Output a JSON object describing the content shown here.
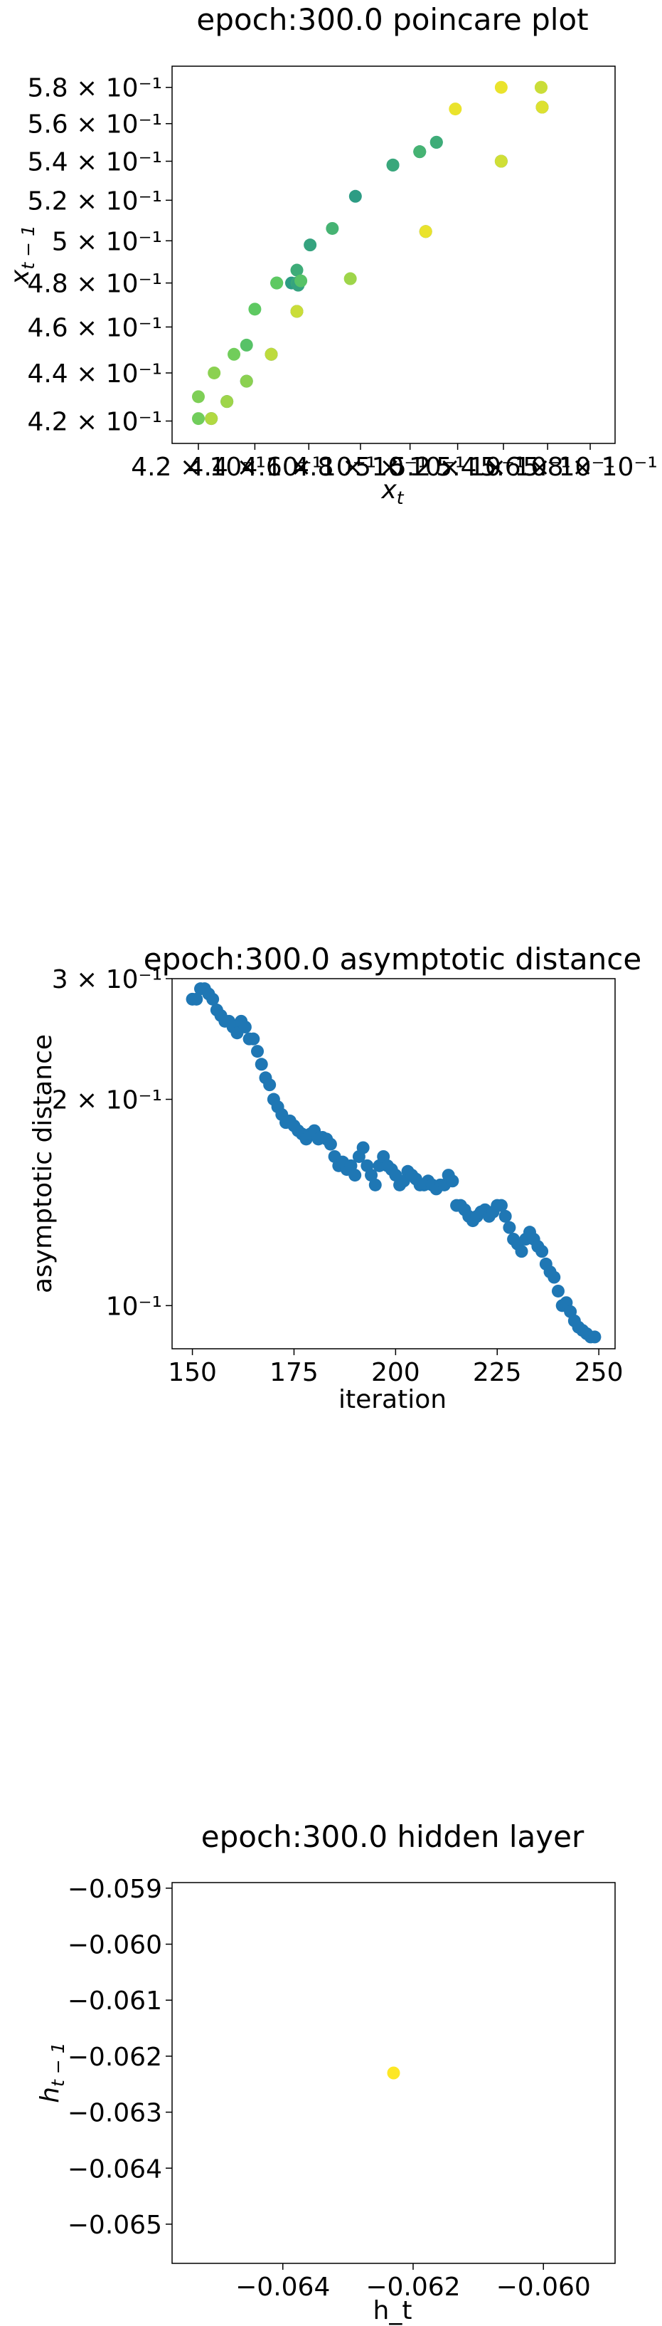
{
  "chart_data": [
    {
      "type": "scatter",
      "title": "epoch:300.0 poincare plot",
      "xlabel": "x_t",
      "ylabel": "x_{t-1}",
      "xscale": "log",
      "yscale": "log",
      "xlim": [
        0.411,
        0.592
      ],
      "ylim": [
        0.411,
        0.592
      ],
      "xticks": [
        0.42,
        0.44,
        0.46,
        0.48,
        0.5,
        0.52,
        0.54,
        0.56,
        0.58
      ],
      "xtick_labels": [
        "4.2 × 10⁻¹",
        "4.4 × 10⁻¹",
        "4.6 × 10⁻¹",
        "4.8 × 10⁻¹",
        "5 × 10⁻¹",
        "5.2 × 10⁻¹",
        "5.4 × 10⁻¹",
        "5.6 × 10⁻¹",
        "5.8 × 10⁻¹"
      ],
      "yticks": [
        0.42,
        0.44,
        0.46,
        0.48,
        0.5,
        0.52,
        0.54,
        0.56,
        0.58
      ],
      "ytick_labels": [
        "4.2 × 10⁻¹",
        "4.4 × 10⁻¹",
        "4.6 × 10⁻¹",
        "4.8 × 10⁻¹",
        "5 × 10⁻¹",
        "5.2 × 10⁻¹",
        "5.4 × 10⁻¹",
        "5.6 × 10⁻¹",
        "5.8 × 10⁻¹"
      ],
      "colormap": "viridis",
      "grid": false,
      "points": [
        {
          "x": 0.42,
          "y": 0.43,
          "c": 0.8
        },
        {
          "x": 0.42,
          "y": 0.421,
          "c": 0.78
        },
        {
          "x": 0.4245,
          "y": 0.421,
          "c": 0.4
        },
        {
          "x": 0.4245,
          "y": 0.421,
          "c": 0.88
        },
        {
          "x": 0.4255,
          "y": 0.44,
          "c": 0.82
        },
        {
          "x": 0.43,
          "y": 0.428,
          "c": 0.35
        },
        {
          "x": 0.43,
          "y": 0.428,
          "c": 0.85
        },
        {
          "x": 0.4325,
          "y": 0.448,
          "c": 0.78
        },
        {
          "x": 0.437,
          "y": 0.4365,
          "c": 0.3
        },
        {
          "x": 0.437,
          "y": 0.4365,
          "c": 0.82
        },
        {
          "x": 0.437,
          "y": 0.452,
          "c": 0.72
        },
        {
          "x": 0.44,
          "y": 0.468,
          "c": 0.75
        },
        {
          "x": 0.446,
          "y": 0.448,
          "c": 0.3
        },
        {
          "x": 0.446,
          "y": 0.448,
          "c": 0.9
        },
        {
          "x": 0.448,
          "y": 0.48,
          "c": 0.55
        },
        {
          "x": 0.448,
          "y": 0.48,
          "c": 0.75
        },
        {
          "x": 0.4535,
          "y": 0.48,
          "c": 0.55
        },
        {
          "x": 0.4555,
          "y": 0.48,
          "c": 0.6
        },
        {
          "x": 0.4555,
          "y": 0.486,
          "c": 0.62
        },
        {
          "x": 0.4555,
          "y": 0.467,
          "c": 0.35
        },
        {
          "x": 0.4555,
          "y": 0.467,
          "c": 0.92
        },
        {
          "x": 0.456,
          "y": 0.479,
          "c": 0.58
        },
        {
          "x": 0.457,
          "y": 0.481,
          "c": 0.72
        },
        {
          "x": 0.4605,
          "y": 0.498,
          "c": 0.58
        },
        {
          "x": 0.469,
          "y": 0.506,
          "c": 0.65
        },
        {
          "x": 0.476,
          "y": 0.482,
          "c": 0.85
        },
        {
          "x": 0.478,
          "y": 0.522,
          "c": 0.55
        },
        {
          "x": 0.493,
          "y": 0.538,
          "c": 0.5
        },
        {
          "x": 0.493,
          "y": 0.538,
          "c": 0.6
        },
        {
          "x": 0.504,
          "y": 0.545,
          "c": 0.45
        },
        {
          "x": 0.504,
          "y": 0.545,
          "c": 0.65
        },
        {
          "x": 0.5065,
          "y": 0.5045,
          "c": 0.4
        },
        {
          "x": 0.5065,
          "y": 0.5045,
          "c": 0.97
        },
        {
          "x": 0.511,
          "y": 0.55,
          "c": 0.5
        },
        {
          "x": 0.511,
          "y": 0.55,
          "c": 0.62
        },
        {
          "x": 0.519,
          "y": 0.568,
          "c": 0.97
        },
        {
          "x": 0.539,
          "y": 0.58,
          "c": 0.97
        },
        {
          "x": 0.539,
          "y": 0.54,
          "c": 0.4
        },
        {
          "x": 0.539,
          "y": 0.54,
          "c": 0.93
        },
        {
          "x": 0.557,
          "y": 0.58,
          "c": 0.97
        },
        {
          "x": 0.557,
          "y": 0.58,
          "c": 0.92
        },
        {
          "x": 0.5575,
          "y": 0.569,
          "c": 0.4
        },
        {
          "x": 0.5575,
          "y": 0.569,
          "c": 0.95
        }
      ]
    },
    {
      "type": "scatter",
      "title": "epoch:300.0 asymptotic distance",
      "xlabel": "iteration",
      "ylabel": "asymptotic distance",
      "yscale": "log",
      "xlim": [
        145,
        254
      ],
      "ylim": [
        0.0865,
        0.3
      ],
      "xticks": [
        150,
        175,
        200,
        225,
        250
      ],
      "xtick_labels": [
        "150",
        "175",
        "200",
        "225",
        "250"
      ],
      "yticks": [
        0.1,
        0.2,
        0.3
      ],
      "ytick_labels": [
        "10⁻¹",
        "2 × 10⁻¹",
        "3 × 10⁻¹"
      ],
      "color": "#1f77b4",
      "grid": false,
      "x": [
        150,
        151,
        152,
        153,
        154,
        155,
        156,
        157,
        158,
        159,
        160,
        161,
        162,
        163,
        164,
        165,
        166,
        167,
        168,
        169,
        170,
        171,
        172,
        173,
        174,
        175,
        176,
        177,
        178,
        179,
        180,
        181,
        182,
        183,
        184,
        185,
        186,
        187,
        188,
        189,
        190,
        191,
        192,
        193,
        194,
        195,
        196,
        197,
        198,
        199,
        200,
        201,
        202,
        203,
        204,
        205,
        206,
        207,
        208,
        209,
        210,
        211,
        212,
        213,
        214,
        215,
        216,
        217,
        218,
        219,
        220,
        221,
        222,
        223,
        224,
        225,
        226,
        227,
        228,
        229,
        230,
        231,
        232,
        233,
        234,
        235,
        236,
        237,
        238,
        239,
        240,
        241,
        242,
        243,
        244,
        245,
        246,
        247,
        248,
        249
      ],
      "y": [
        0.28,
        0.28,
        0.29,
        0.29,
        0.285,
        0.28,
        0.27,
        0.265,
        0.26,
        0.26,
        0.255,
        0.25,
        0.26,
        0.255,
        0.245,
        0.245,
        0.235,
        0.225,
        0.215,
        0.21,
        0.2,
        0.195,
        0.19,
        0.185,
        0.186,
        0.183,
        0.18,
        0.178,
        0.175,
        0.178,
        0.18,
        0.175,
        0.176,
        0.175,
        0.172,
        0.165,
        0.16,
        0.162,
        0.158,
        0.16,
        0.155,
        0.165,
        0.17,
        0.16,
        0.155,
        0.15,
        0.16,
        0.165,
        0.16,
        0.158,
        0.155,
        0.15,
        0.152,
        0.157,
        0.155,
        0.153,
        0.15,
        0.15,
        0.152,
        0.15,
        0.148,
        0.15,
        0.15,
        0.155,
        0.152,
        0.14,
        0.14,
        0.138,
        0.135,
        0.133,
        0.135,
        0.137,
        0.138,
        0.135,
        0.137,
        0.14,
        0.14,
        0.135,
        0.13,
        0.125,
        0.123,
        0.12,
        0.125,
        0.128,
        0.125,
        0.122,
        0.12,
        0.115,
        0.112,
        0.11,
        0.105,
        0.1,
        0.101,
        0.098,
        0.095,
        0.093,
        0.092,
        0.091,
        0.09,
        0.09
      ]
    },
    {
      "type": "scatter",
      "title": "epoch:300.0 hidden layer",
      "xlabel": "h_t",
      "ylabel": "h_{t-1}",
      "xlim": [
        -0.0657,
        -0.0589
      ],
      "ylim": [
        -0.0657,
        -0.0589
      ],
      "xticks": [
        -0.064,
        -0.062,
        -0.06
      ],
      "xtick_labels": [
        "−0.064",
        "−0.062",
        "−0.060"
      ],
      "yticks": [
        -0.059,
        -0.06,
        -0.061,
        -0.062,
        -0.063,
        -0.064,
        -0.065
      ],
      "ytick_labels": [
        "−0.059",
        "−0.060",
        "−0.061",
        "−0.062",
        "−0.063",
        "−0.064",
        "−0.065"
      ],
      "grid": false,
      "points": [
        {
          "x": -0.0623,
          "y": -0.0623,
          "color": "#fde725"
        }
      ]
    }
  ]
}
